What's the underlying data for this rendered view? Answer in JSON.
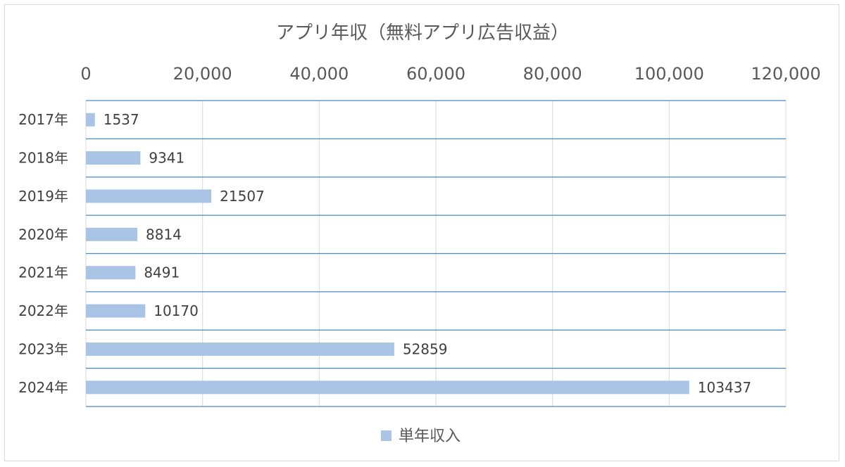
{
  "chart_data": {
    "type": "bar",
    "orientation": "horizontal",
    "title": "アプリ年収（無料アプリ広告収益）",
    "categories": [
      "2017年",
      "2018年",
      "2019年",
      "2020年",
      "2021年",
      "2022年",
      "2023年",
      "2024年"
    ],
    "series": [
      {
        "name": "単年収入",
        "values": [
          1537,
          9341,
          21507,
          8814,
          8491,
          10170,
          52859,
          103437
        ]
      }
    ],
    "xlim": [
      0,
      120000
    ],
    "x_ticks": [
      0,
      20000,
      40000,
      60000,
      80000,
      100000,
      120000
    ],
    "x_tick_labels": [
      "0",
      "20,000",
      "40,000",
      "60,000",
      "80,000",
      "100,000",
      "120,000"
    ],
    "x_axis_position": "top",
    "grid": true,
    "data_labels": true,
    "legend_position": "bottom",
    "colors": {
      "bar": "#a9c4e4",
      "category_lines": "#4a8ac6",
      "grid": "#d9d9d9"
    }
  }
}
